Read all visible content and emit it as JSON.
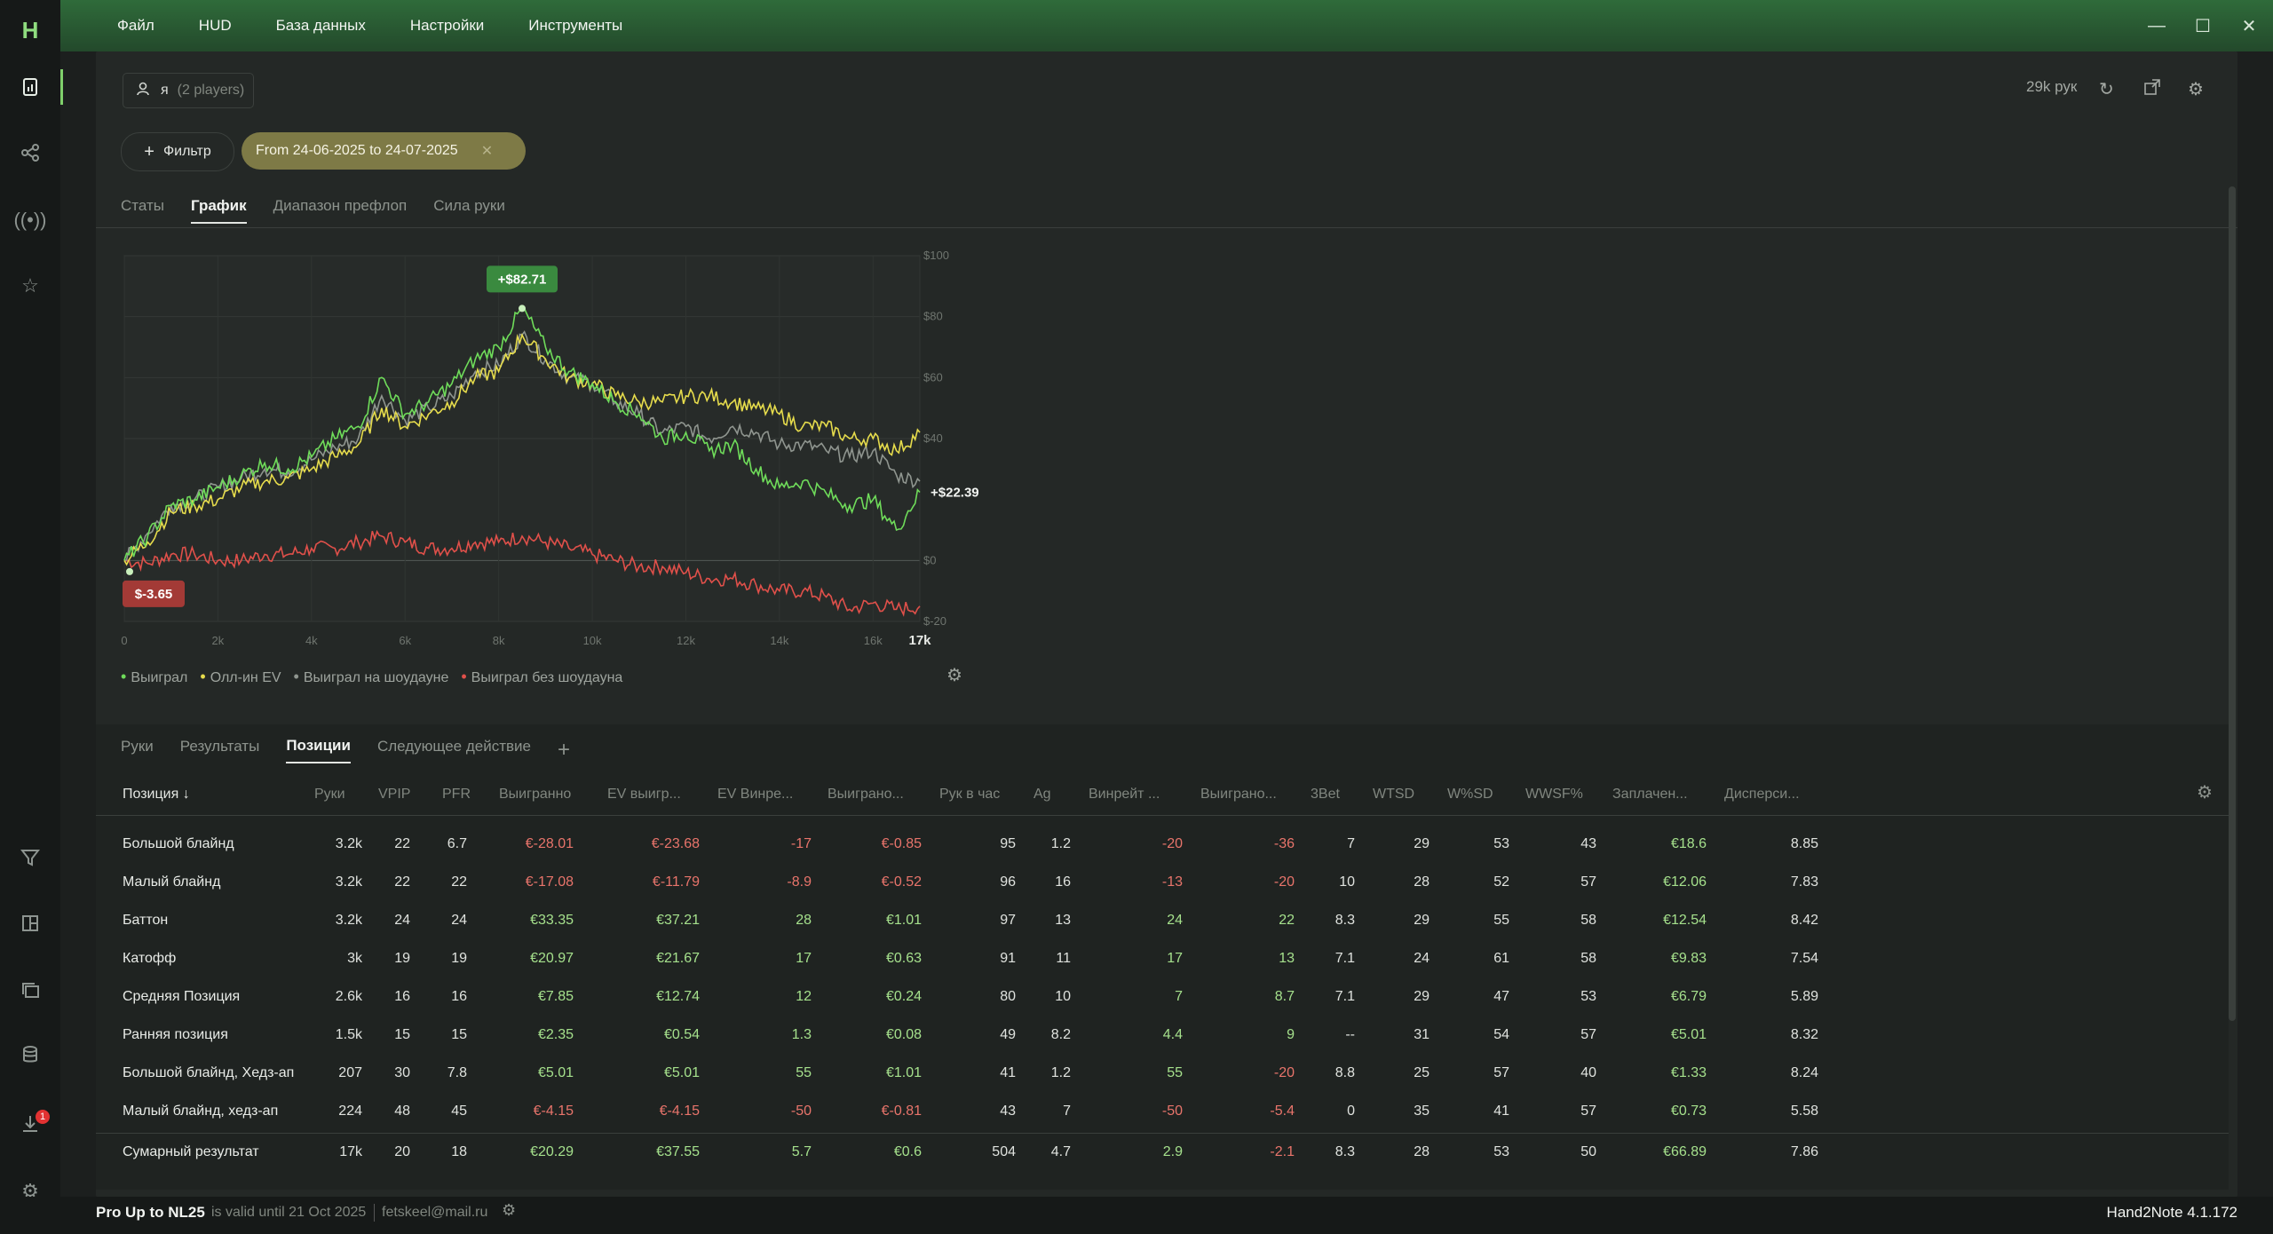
{
  "menu": [
    "Файл",
    "HUD",
    "База данных",
    "Настройки",
    "Инструменты"
  ],
  "window": {
    "minimize": "—",
    "maximize": "☐",
    "close": "✕"
  },
  "sidebar": {
    "logo": "H",
    "notifications_badge": "1"
  },
  "player_button": {
    "name": "я",
    "count": "(2 players)"
  },
  "filter_button": {
    "label": "Фильтр",
    "plus": "+"
  },
  "date_chip": {
    "label": "From 24-06-2025 to 24-07-2025",
    "close": "✕"
  },
  "top_right": {
    "hands": "29k рук"
  },
  "tabs_main": [
    {
      "label": "Статы",
      "active": false
    },
    {
      "label": "График",
      "active": true
    },
    {
      "label": "Диапазон префлоп",
      "active": false
    },
    {
      "label": "Сила руки",
      "active": false
    }
  ],
  "chart_data": {
    "type": "line",
    "xlim": [
      0,
      17000
    ],
    "ylim": [
      -20,
      100
    ],
    "x_ticks": [
      "0",
      "2k",
      "4k",
      "6k",
      "8k",
      "10k",
      "12k",
      "14k",
      "16k",
      "17k"
    ],
    "x_tick_values": [
      0,
      2000,
      4000,
      6000,
      8000,
      10000,
      12000,
      14000,
      16000,
      17000
    ],
    "y_ticks": [
      "$100",
      "$80",
      "$60",
      "$40",
      "$0",
      "$-20"
    ],
    "y_tick_values": [
      100,
      80,
      60,
      40,
      0,
      -20
    ],
    "grid": true,
    "annotations": {
      "peak": "+$82.71",
      "end": "+$22.39",
      "min": "$-3.65"
    },
    "series": [
      {
        "name": "Выиграл",
        "color": "#6fdc5a",
        "x": [
          0,
          500,
          1000,
          1500,
          2000,
          2500,
          3000,
          3500,
          4000,
          4500,
          5000,
          5500,
          6000,
          6500,
          7000,
          7500,
          8000,
          8500,
          9000,
          9500,
          10000,
          10500,
          11000,
          11500,
          12000,
          12500,
          13000,
          13500,
          14000,
          14500,
          15000,
          15500,
          16000,
          16500,
          17000
        ],
        "y": [
          0,
          8,
          18,
          20,
          24,
          28,
          32,
          30,
          34,
          40,
          44,
          60,
          48,
          52,
          58,
          66,
          70,
          82.7,
          70,
          62,
          58,
          52,
          48,
          40,
          42,
          36,
          38,
          30,
          24,
          26,
          22,
          18,
          20,
          10,
          22.39
        ]
      },
      {
        "name": "Олл-ин EV",
        "color": "#e6dc4c",
        "x": [
          0,
          500,
          1000,
          1500,
          2000,
          2500,
          3000,
          3500,
          4000,
          4500,
          5000,
          5500,
          6000,
          6500,
          7000,
          7500,
          8000,
          8500,
          9000,
          9500,
          10000,
          10500,
          11000,
          11500,
          12000,
          12500,
          13000,
          13500,
          14000,
          14500,
          15000,
          15500,
          16000,
          16500,
          17000
        ],
        "y": [
          0,
          6,
          16,
          18,
          20,
          24,
          26,
          27,
          30,
          34,
          38,
          50,
          44,
          48,
          52,
          60,
          62,
          74,
          66,
          60,
          58,
          54,
          52,
          52,
          54,
          54,
          52,
          50,
          48,
          44,
          44,
          40,
          40,
          36,
          42
        ]
      },
      {
        "name": "Выиграл на шоудауне",
        "color": "#8f958f",
        "x": [
          0,
          500,
          1000,
          1500,
          2000,
          2500,
          3000,
          3500,
          4000,
          4500,
          5000,
          5500,
          6000,
          6500,
          7000,
          7500,
          8000,
          8500,
          9000,
          9500,
          10000,
          10500,
          11000,
          11500,
          12000,
          12500,
          13000,
          13500,
          14000,
          14500,
          15000,
          15500,
          16000,
          16500,
          17000
        ],
        "y": [
          0,
          9,
          18,
          20,
          24,
          27,
          30,
          29,
          33,
          37,
          40,
          54,
          46,
          50,
          54,
          62,
          64,
          74,
          66,
          60,
          58,
          52,
          48,
          42,
          44,
          40,
          44,
          42,
          38,
          38,
          36,
          34,
          36,
          28,
          26
        ]
      },
      {
        "name": "Выиграл без шоудауна",
        "color": "#e0504a",
        "x": [
          0,
          500,
          1000,
          1500,
          2000,
          2500,
          3000,
          3500,
          4000,
          4500,
          5000,
          5500,
          6000,
          6500,
          7000,
          7500,
          8000,
          8500,
          9000,
          9500,
          10000,
          10500,
          11000,
          11500,
          12000,
          12500,
          13000,
          13500,
          14000,
          14500,
          15000,
          15500,
          16000,
          16500,
          17000
        ],
        "y": [
          0,
          -1,
          2,
          2,
          0,
          0,
          2,
          2,
          4,
          4,
          6,
          8,
          6,
          4,
          4,
          6,
          6,
          8,
          6,
          4,
          2,
          0,
          -2,
          -2,
          -4,
          -6,
          -6,
          -8,
          -10,
          -10,
          -12,
          -16,
          -14,
          -16,
          -15
        ]
      }
    ]
  },
  "legend": [
    "Выиграл",
    "Олл-ин EV",
    "Выиграл на шоудауне",
    "Выиграл без шоудауна"
  ],
  "tabs_bottom": [
    {
      "label": "Руки",
      "active": false
    },
    {
      "label": "Результаты",
      "active": false
    },
    {
      "label": "Позиции",
      "active": true
    },
    {
      "label": "Следующее действие",
      "active": false
    }
  ],
  "tab_add": "+",
  "table": {
    "columns": [
      "Позиция ↓",
      "Руки",
      "VPIP",
      "PFR",
      "Выигранно",
      "EV выигр...",
      "EV Винрe...",
      "Выиграно...",
      "Рук в час",
      "Ag",
      "Винрейт ...",
      "Выиграно...",
      "3Bet",
      "WTSD",
      "W%SD",
      "WWSF%",
      "Заплачен...",
      "Дисперси..."
    ],
    "rows": [
      [
        "Большой блайнд",
        "3.2k",
        "22",
        "6.7",
        "€-28.01",
        "€-23.68",
        "-17",
        "€-0.85",
        "95",
        "1.2",
        "-20",
        "-36",
        "7",
        "29",
        "53",
        "43",
        "€18.6",
        "8.85"
      ],
      [
        "Малый блайнд",
        "3.2k",
        "22",
        "22",
        "€-17.08",
        "€-11.79",
        "-8.9",
        "€-0.52",
        "96",
        "16",
        "-13",
        "-20",
        "10",
        "28",
        "52",
        "57",
        "€12.06",
        "7.83"
      ],
      [
        "Баттон",
        "3.2k",
        "24",
        "24",
        "€33.35",
        "€37.21",
        "28",
        "€1.01",
        "97",
        "13",
        "24",
        "22",
        "8.3",
        "29",
        "55",
        "58",
        "€12.54",
        "8.42"
      ],
      [
        "Катофф",
        "3k",
        "19",
        "19",
        "€20.97",
        "€21.67",
        "17",
        "€0.63",
        "91",
        "11",
        "17",
        "13",
        "7.1",
        "24",
        "61",
        "58",
        "€9.83",
        "7.54"
      ],
      [
        "Средняя Позиция",
        "2.6k",
        "16",
        "16",
        "€7.85",
        "€12.74",
        "12",
        "€0.24",
        "80",
        "10",
        "7",
        "8.7",
        "7.1",
        "29",
        "47",
        "53",
        "€6.79",
        "5.89"
      ],
      [
        "Ранняя позиция",
        "1.5k",
        "15",
        "15",
        "€2.35",
        "€0.54",
        "1.3",
        "€0.08",
        "49",
        "8.2",
        "4.4",
        "9",
        "--",
        "31",
        "54",
        "57",
        "€5.01",
        "8.32"
      ],
      [
        "Большой блайнд, Хедз-ап",
        "207",
        "30",
        "7.8",
        "€5.01",
        "€5.01",
        "55",
        "€1.01",
        "41",
        "1.2",
        "55",
        "-20",
        "8.8",
        "25",
        "57",
        "40",
        "€1.33",
        "8.24"
      ],
      [
        "Малый блайнд, хедз-ап",
        "224",
        "48",
        "45",
        "€-4.15",
        "€-4.15",
        "-50",
        "€-0.81",
        "43",
        "7",
        "-50",
        "-5.4",
        "0",
        "35",
        "41",
        "57",
        "€0.73",
        "5.58"
      ]
    ],
    "total": [
      "Сумарный результат",
      "17k",
      "20",
      "18",
      "€20.29",
      "€37.55",
      "5.7",
      "€0.6",
      "504",
      "4.7",
      "2.9",
      "-2.1",
      "8.3",
      "28",
      "53",
      "50",
      "€66.89",
      "7.86"
    ]
  },
  "footer": {
    "license": "Pro Up to NL25",
    "valid": "is valid until 21 Oct 2025",
    "email": "fetskeel@mail.ru",
    "version": "Hand2Note 4.1.172"
  },
  "colors": {
    "positive": "#a5e08c",
    "negative": "#e8746b",
    "accent": "#7fcf6b"
  }
}
